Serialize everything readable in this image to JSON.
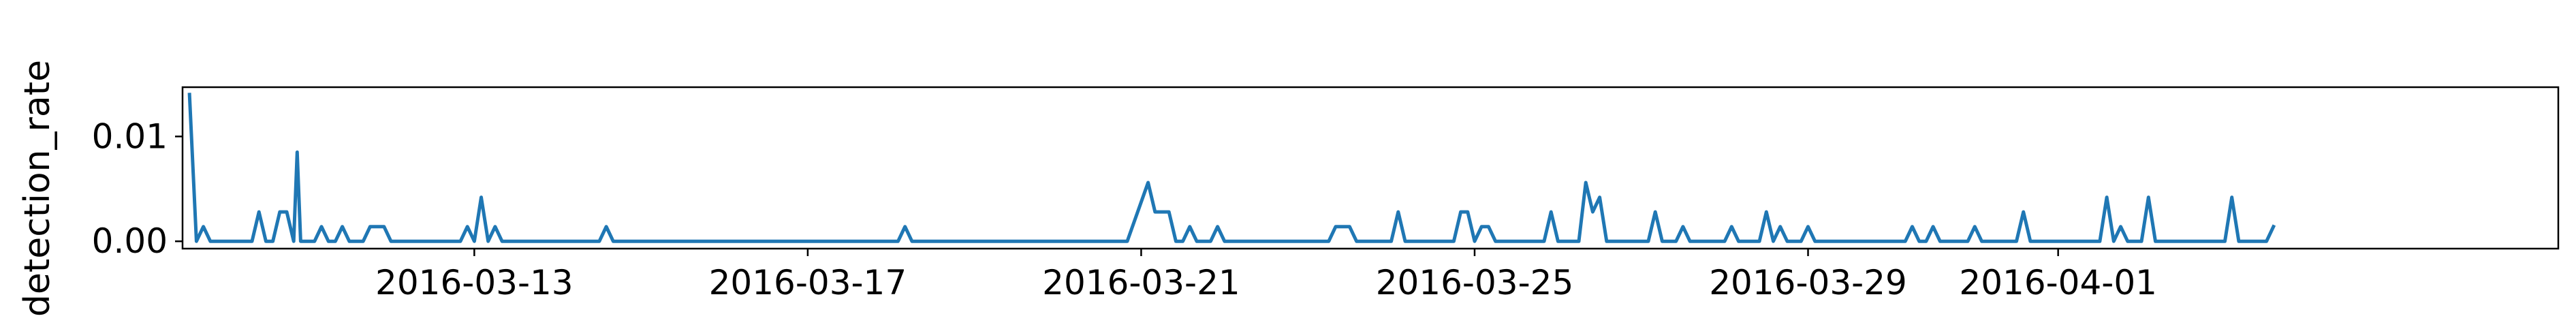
{
  "chart_data": {
    "type": "line",
    "xlabel": "",
    "ylabel": "detection_rate",
    "title": "",
    "grid": false,
    "legend": "none",
    "color": "#1f77b4",
    "x_range": [
      "2016-03-09T12:00",
      "2016-04-07T00:00"
    ],
    "ylim": [
      -0.0007,
      0.0147
    ],
    "y_ticks": [
      {
        "value": 0.0,
        "label": "0.00"
      },
      {
        "value": 0.01,
        "label": "0.01"
      }
    ],
    "x_ticks": [
      {
        "value": "2016-03-13",
        "label": "2016-03-13"
      },
      {
        "value": "2016-03-17",
        "label": "2016-03-17"
      },
      {
        "value": "2016-03-21",
        "label": "2016-03-21"
      },
      {
        "value": "2016-03-25",
        "label": "2016-03-25"
      },
      {
        "value": "2016-03-29",
        "label": "2016-03-29"
      },
      {
        "value": "2016-04-01",
        "label": "2016-04-01"
      }
    ],
    "series": [
      {
        "points": [
          [
            "2016-03-09T14:00",
            0.014
          ],
          [
            "2016-03-09T16:00",
            0.0
          ],
          [
            "2016-03-09T18:00",
            0.0014
          ],
          [
            "2016-03-09T20:00",
            0.0
          ],
          [
            "2016-03-10T08:00",
            0.0
          ],
          [
            "2016-03-10T10:00",
            0.0028
          ],
          [
            "2016-03-10T12:00",
            0.0
          ],
          [
            "2016-03-10T14:00",
            0.0
          ],
          [
            "2016-03-10T16:00",
            0.0028
          ],
          [
            "2016-03-10T18:00",
            0.0028
          ],
          [
            "2016-03-10T20:00",
            0.0
          ],
          [
            "2016-03-10T21:00",
            0.0085
          ],
          [
            "2016-03-10T22:00",
            0.0
          ],
          [
            "2016-03-11T02:00",
            0.0
          ],
          [
            "2016-03-11T04:00",
            0.0014
          ],
          [
            "2016-03-11T06:00",
            0.0
          ],
          [
            "2016-03-11T08:00",
            0.0
          ],
          [
            "2016-03-11T10:00",
            0.0014
          ],
          [
            "2016-03-11T12:00",
            0.0
          ],
          [
            "2016-03-11T16:00",
            0.0
          ],
          [
            "2016-03-11T18:00",
            0.0014
          ],
          [
            "2016-03-11T22:00",
            0.0014
          ],
          [
            "2016-03-12T00:00",
            0.0
          ],
          [
            "2016-03-12T20:00",
            0.0
          ],
          [
            "2016-03-12T22:00",
            0.0014
          ],
          [
            "2016-03-13T00:00",
            0.0
          ],
          [
            "2016-03-13T02:00",
            0.0042
          ],
          [
            "2016-03-13T04:00",
            0.0
          ],
          [
            "2016-03-13T06:00",
            0.0014
          ],
          [
            "2016-03-13T08:00",
            0.0
          ],
          [
            "2016-03-14T12:00",
            0.0
          ],
          [
            "2016-03-14T14:00",
            0.0014
          ],
          [
            "2016-03-14T16:00",
            0.0
          ],
          [
            "2016-03-18T02:00",
            0.0
          ],
          [
            "2016-03-18T04:00",
            0.0014
          ],
          [
            "2016-03-18T06:00",
            0.0
          ],
          [
            "2016-03-20T20:00",
            0.0
          ],
          [
            "2016-03-21T02:00",
            0.0056
          ],
          [
            "2016-03-21T04:00",
            0.0028
          ],
          [
            "2016-03-21T08:00",
            0.0028
          ],
          [
            "2016-03-21T10:00",
            0.0
          ],
          [
            "2016-03-21T12:00",
            0.0
          ],
          [
            "2016-03-21T14:00",
            0.0014
          ],
          [
            "2016-03-21T16:00",
            0.0
          ],
          [
            "2016-03-21T20:00",
            0.0
          ],
          [
            "2016-03-21T22:00",
            0.0014
          ],
          [
            "2016-03-22T00:00",
            0.0
          ],
          [
            "2016-03-23T06:00",
            0.0
          ],
          [
            "2016-03-23T08:00",
            0.0014
          ],
          [
            "2016-03-23T12:00",
            0.0014
          ],
          [
            "2016-03-23T14:00",
            0.0
          ],
          [
            "2016-03-24T00:00",
            0.0
          ],
          [
            "2016-03-24T02:00",
            0.0028
          ],
          [
            "2016-03-24T04:00",
            0.0
          ],
          [
            "2016-03-24T18:00",
            0.0
          ],
          [
            "2016-03-24T20:00",
            0.0028
          ],
          [
            "2016-03-24T22:00",
            0.0028
          ],
          [
            "2016-03-25T00:00",
            0.0
          ],
          [
            "2016-03-25T02:00",
            0.0014
          ],
          [
            "2016-03-25T04:00",
            0.0014
          ],
          [
            "2016-03-25T06:00",
            0.0
          ],
          [
            "2016-03-25T20:00",
            0.0
          ],
          [
            "2016-03-25T22:00",
            0.0028
          ],
          [
            "2016-03-26T00:00",
            0.0
          ],
          [
            "2016-03-26T06:00",
            0.0
          ],
          [
            "2016-03-26T08:00",
            0.0056
          ],
          [
            "2016-03-26T10:00",
            0.0028
          ],
          [
            "2016-03-26T12:00",
            0.0042
          ],
          [
            "2016-03-26T14:00",
            0.0
          ],
          [
            "2016-03-27T02:00",
            0.0
          ],
          [
            "2016-03-27T04:00",
            0.0028
          ],
          [
            "2016-03-27T06:00",
            0.0
          ],
          [
            "2016-03-27T10:00",
            0.0
          ],
          [
            "2016-03-27T12:00",
            0.0014
          ],
          [
            "2016-03-27T14:00",
            0.0
          ],
          [
            "2016-03-28T00:00",
            0.0
          ],
          [
            "2016-03-28T02:00",
            0.0014
          ],
          [
            "2016-03-28T04:00",
            0.0
          ],
          [
            "2016-03-28T10:00",
            0.0
          ],
          [
            "2016-03-28T12:00",
            0.0028
          ],
          [
            "2016-03-28T14:00",
            0.0
          ],
          [
            "2016-03-28T16:00",
            0.0014
          ],
          [
            "2016-03-28T18:00",
            0.0
          ],
          [
            "2016-03-28T22:00",
            0.0
          ],
          [
            "2016-03-29T00:00",
            0.0014
          ],
          [
            "2016-03-29T02:00",
            0.0
          ],
          [
            "2016-03-30T04:00",
            0.0
          ],
          [
            "2016-03-30T06:00",
            0.0014
          ],
          [
            "2016-03-30T08:00",
            0.0
          ],
          [
            "2016-03-30T10:00",
            0.0
          ],
          [
            "2016-03-30T12:00",
            0.0014
          ],
          [
            "2016-03-30T14:00",
            0.0
          ],
          [
            "2016-03-30T22:00",
            0.0
          ],
          [
            "2016-03-31T00:00",
            0.0014
          ],
          [
            "2016-03-31T02:00",
            0.0
          ],
          [
            "2016-03-31T12:00",
            0.0
          ],
          [
            "2016-03-31T14:00",
            0.0028
          ],
          [
            "2016-03-31T16:00",
            0.0
          ],
          [
            "2016-04-01T12:00",
            0.0
          ],
          [
            "2016-04-01T14:00",
            0.0042
          ],
          [
            "2016-04-01T16:00",
            0.0
          ],
          [
            "2016-04-01T18:00",
            0.0014
          ],
          [
            "2016-04-01T20:00",
            0.0
          ],
          [
            "2016-04-02T00:00",
            0.0
          ],
          [
            "2016-04-02T02:00",
            0.0042
          ],
          [
            "2016-04-02T04:00",
            0.0
          ],
          [
            "2016-04-03T00:00",
            0.0
          ],
          [
            "2016-04-03T02:00",
            0.0042
          ],
          [
            "2016-04-03T04:00",
            0.0
          ],
          [
            "2016-04-03T12:00",
            0.0
          ],
          [
            "2016-04-03T14:00",
            0.0014
          ]
        ]
      }
    ]
  }
}
